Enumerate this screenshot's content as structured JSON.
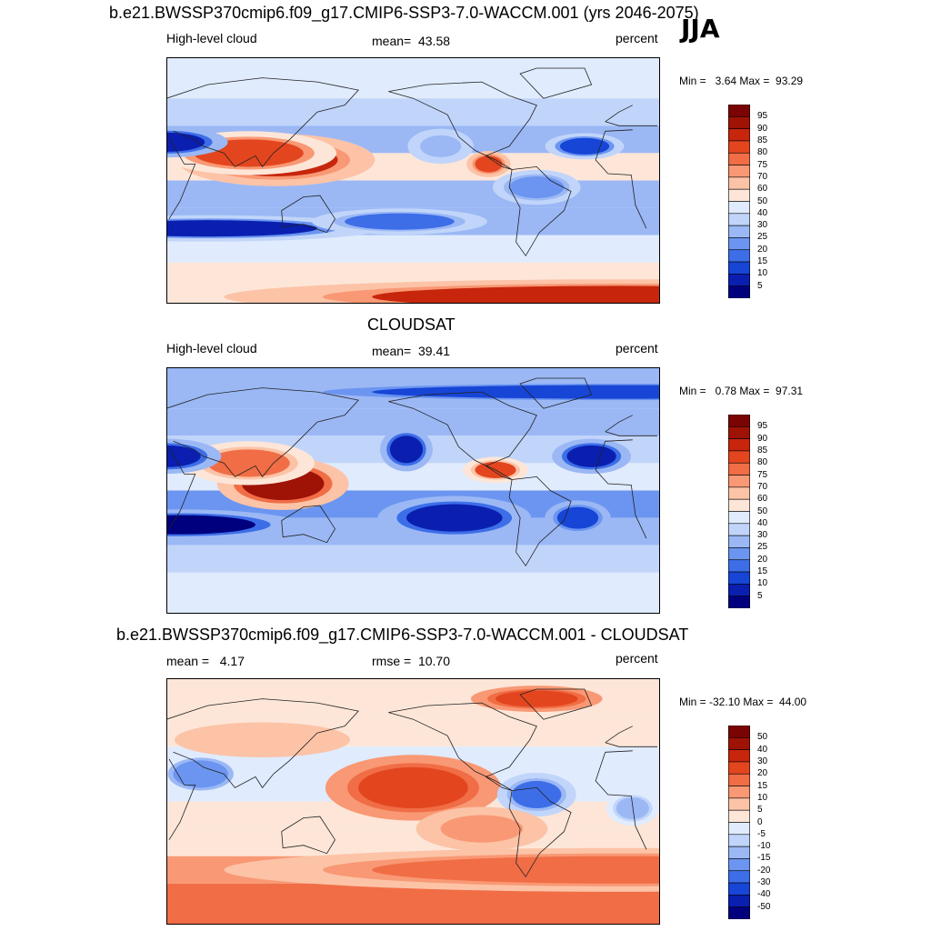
{
  "season": "JJA",
  "colors": {
    "absolute": [
      "#00007f",
      "#0a1fb0",
      "#1745d6",
      "#3d6ee8",
      "#6b95f0",
      "#9bb8f5",
      "#c1d5fa",
      "#e0ebfd",
      "#fde6d8",
      "#fcc3a7",
      "#f99874",
      "#f06d46",
      "#e3461f",
      "#c7260c",
      "#9e1306",
      "#7a0403"
    ],
    "difference": [
      "#00007f",
      "#0a1fb0",
      "#1745d6",
      "#3d6ee8",
      "#6b95f0",
      "#9bb8f5",
      "#c1d5fa",
      "#e0ebfd",
      "#fde6d8",
      "#fcc3a7",
      "#f99874",
      "#f06d46",
      "#e3461f",
      "#c7260c",
      "#9e1306",
      "#7a0403"
    ]
  },
  "chart_data": [
    {
      "type": "heatmap",
      "title": "b.e21.BWSSP370cmip6.f09_g17.CMIP6-SSP3-7.0-WACCM.001 (yrs 2046-2075)",
      "left_label": "High-level cloud",
      "center_label": "mean=  43.58",
      "right_label": "percent",
      "minmax_label": "Min =   3.64 Max =  93.29",
      "mean": 43.58,
      "min": 3.64,
      "max": 93.29,
      "colorbar_levels": [
        "95",
        "90",
        "85",
        "80",
        "75",
        "70",
        "60",
        "50",
        "40",
        "30",
        "25",
        "20",
        "15",
        "10",
        "5"
      ],
      "regions": [
        {
          "lon": 110,
          "lat": 15,
          "value": 88,
          "rx": 45,
          "ry": 12
        },
        {
          "lon": 90,
          "lat": 20,
          "value": 82,
          "rx": 40,
          "ry": 10
        },
        {
          "lon": -95,
          "lat": 12,
          "value": 85,
          "rx": 10,
          "ry": 6
        },
        {
          "lon": 30,
          "lat": 28,
          "value": 8,
          "rx": 28,
          "ry": 7
        },
        {
          "lon": 60,
          "lat": -35,
          "value": 10,
          "rx": 80,
          "ry": 6
        },
        {
          "lon": -160,
          "lat": -30,
          "value": 18,
          "rx": 40,
          "ry": 6
        },
        {
          "lon": -25,
          "lat": 25,
          "value": 12,
          "rx": 18,
          "ry": 6
        },
        {
          "lon": 0,
          "lat": -85,
          "value": 88,
          "rx": 180,
          "ry": 8
        },
        {
          "lon": -60,
          "lat": -5,
          "value": 22,
          "rx": 20,
          "ry": 8
        },
        {
          "lon": -130,
          "lat": 25,
          "value": 30,
          "rx": 15,
          "ry": 8
        }
      ]
    },
    {
      "type": "heatmap",
      "title": "CLOUDSAT",
      "left_label": "High-level cloud",
      "center_label": "mean=  39.41",
      "right_label": "percent",
      "minmax_label": "Min =   0.78 Max =  97.31",
      "mean": 39.41,
      "min": 0.78,
      "max": 97.31,
      "colorbar_levels": [
        "95",
        "90",
        "85",
        "80",
        "75",
        "70",
        "60",
        "50",
        "40",
        "30",
        "25",
        "20",
        "15",
        "10",
        "5"
      ],
      "regions": [
        {
          "lon": 115,
          "lat": 5,
          "value": 92,
          "rx": 30,
          "ry": 12
        },
        {
          "lon": 90,
          "lat": 20,
          "value": 80,
          "rx": 30,
          "ry": 10
        },
        {
          "lon": -90,
          "lat": 15,
          "value": 82,
          "rx": 15,
          "ry": 6
        },
        {
          "lon": 30,
          "lat": 25,
          "value": 6,
          "rx": 25,
          "ry": 8
        },
        {
          "lon": 40,
          "lat": -25,
          "value": 5,
          "rx": 55,
          "ry": 7
        },
        {
          "lon": -120,
          "lat": -20,
          "value": 6,
          "rx": 35,
          "ry": 10
        },
        {
          "lon": -155,
          "lat": 30,
          "value": 10,
          "rx": 12,
          "ry": 10
        },
        {
          "lon": -20,
          "lat": 25,
          "value": 10,
          "rx": 18,
          "ry": 8
        },
        {
          "lon": -30,
          "lat": -20,
          "value": 12,
          "rx": 15,
          "ry": 8
        },
        {
          "lon": 0,
          "lat": 72,
          "value": 12,
          "rx": 180,
          "ry": 5
        }
      ]
    },
    {
      "type": "heatmap",
      "title": "b.e21.BWSSP370cmip6.f09_g17.CMIP6-SSP3-7.0-WACCM.001 - CLOUDSAT",
      "left_label": "mean =   4.17",
      "center_label": "rmse =  10.70",
      "right_label": "percent",
      "minmax_label": "Min = -32.10 Max =  44.00",
      "mean": 4.17,
      "rmse": 10.7,
      "min": -32.1,
      "max": 44.0,
      "colorbar_levels": [
        "50",
        "40",
        "30",
        "20",
        "15",
        "10",
        "5",
        "0",
        "-5",
        "-10",
        "-15",
        "-20",
        "-30",
        "-40",
        "-50"
      ],
      "regions": [
        {
          "lon": -150,
          "lat": 10,
          "value": 22,
          "rx": 40,
          "ry": 15
        },
        {
          "lon": 55,
          "lat": 20,
          "value": -18,
          "rx": 20,
          "ry": 10
        },
        {
          "lon": -60,
          "lat": 5,
          "value": -20,
          "rx": 18,
          "ry": 10
        },
        {
          "lon": 10,
          "lat": -5,
          "value": -12,
          "rx": 12,
          "ry": 8
        },
        {
          "lon": 0,
          "lat": -50,
          "value": 18,
          "rx": 180,
          "ry": 10
        },
        {
          "lon": -60,
          "lat": 75,
          "value": 25,
          "rx": 30,
          "ry": 6
        },
        {
          "lon": 100,
          "lat": 45,
          "value": 10,
          "rx": 40,
          "ry": 8
        },
        {
          "lon": -100,
          "lat": -20,
          "value": 12,
          "rx": 30,
          "ry": 10
        }
      ]
    }
  ]
}
